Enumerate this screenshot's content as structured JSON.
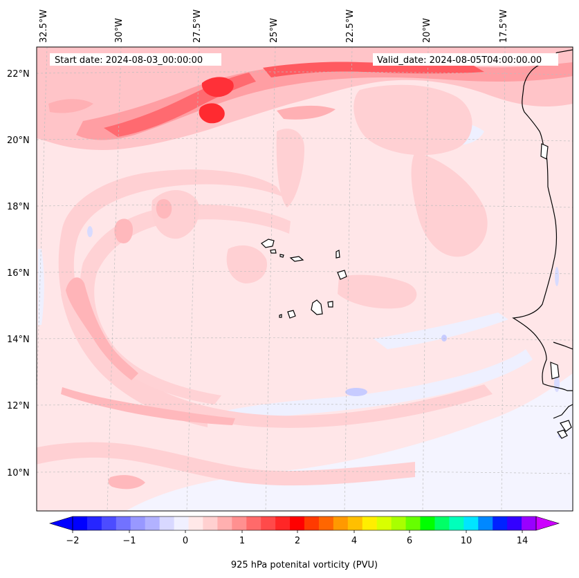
{
  "header": {
    "start_date": "Start date: 2024-08-03_00:00:00",
    "valid_date": "Valid_date: 2024-08-05T04:00:00.00"
  },
  "longitude_labels": [
    "32.5°W",
    "30°W",
    "27.5°W",
    "25°W",
    "22.5°W",
    "20°W",
    "17.5°W"
  ],
  "latitude_labels": [
    "22°N",
    "20°N",
    "18°N",
    "16°N",
    "14°N",
    "12°N",
    "10°N"
  ],
  "colorbar": {
    "label": "925 hPa potenital vorticity (PVU)",
    "tick_labels": [
      "−2",
      "−1",
      "0",
      "1",
      "2",
      "4",
      "6",
      "10",
      "14"
    ],
    "colors": [
      "#0000ff",
      "#2626ff",
      "#4c4cff",
      "#7272ff",
      "#9898ff",
      "#b2b2ff",
      "#d8d8ff",
      "#f0f0ff",
      "#ffe8e8",
      "#ffd0d0",
      "#ffb0b0",
      "#ff9090",
      "#ff6a6a",
      "#ff4a4a",
      "#ff2626",
      "#ff0000",
      "#ff3a00",
      "#ff6600",
      "#ff9900",
      "#ffbf00",
      "#ffee00",
      "#d8ff00",
      "#a8ff00",
      "#66ff00",
      "#00ff00",
      "#00ff66",
      "#00ffbb",
      "#00e5ff",
      "#0088ff",
      "#0022ff",
      "#3300ff",
      "#9900ff"
    ],
    "under_color": "#0000ff",
    "over_color": "#cc00ff"
  },
  "palette": {
    "ocean_base": "#ffe4e6",
    "pale_pink": "#ffd0d0",
    "mid_pink": "#ffb0b0",
    "strong_red": "#ff4a4a",
    "peak_red": "#ff1010",
    "pale_blue": "#eceeff",
    "blue": "#c8ccff"
  }
}
